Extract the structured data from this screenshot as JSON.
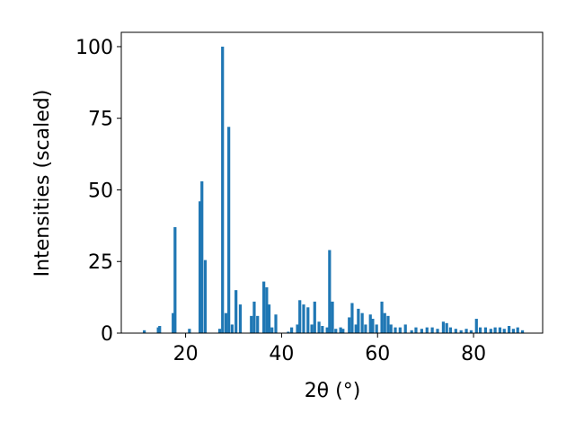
{
  "chart_data": {
    "type": "bar",
    "xlabel": "2θ (°)",
    "ylabel": "Intensities (scaled)",
    "color": "#1f77b4",
    "width": 0.6,
    "x": [
      11.4,
      14.3,
      14.6,
      17.4,
      17.8,
      20.8,
      23.0,
      23.4,
      24.1,
      27.1,
      27.7,
      28.4,
      29.0,
      29.7,
      30.5,
      31.4,
      33.7,
      34.3,
      35.0,
      36.3,
      36.9,
      37.4,
      38.0,
      38.8,
      41.4,
      42.1,
      43.3,
      43.8,
      44.6,
      45.5,
      46.3,
      46.9,
      47.8,
      48.5,
      49.5,
      50.0,
      50.6,
      51.3,
      52.3,
      52.8,
      54.1,
      54.7,
      55.5,
      56.0,
      56.8,
      57.5,
      58.5,
      59.0,
      59.8,
      60.9,
      61.5,
      62.2,
      62.8,
      63.7,
      64.7,
      65.8,
      67.1,
      68.0,
      69.2,
      70.3,
      71.4,
      72.5,
      73.7,
      74.4,
      75.2,
      76.3,
      77.4,
      78.5,
      79.5,
      80.6,
      81.4,
      82.5,
      83.6,
      84.5,
      85.5,
      86.4,
      87.4,
      88.3,
      89.2,
      90.2
    ],
    "values": [
      1,
      2,
      2.5,
      7,
      37,
      1.5,
      46,
      53,
      25.5,
      1.5,
      100,
      7,
      72,
      3,
      15,
      10,
      6,
      11,
      6,
      18,
      16,
      10,
      2,
      6.5,
      0.5,
      2,
      3,
      11.5,
      10,
      9,
      3,
      11,
      4,
      2.5,
      2,
      29,
      11,
      1.5,
      2,
      1.5,
      5.5,
      10.5,
      3,
      8.5,
      7,
      3,
      6.5,
      5,
      3,
      11,
      7,
      6,
      3,
      2,
      2,
      3,
      1,
      2,
      1.5,
      2,
      2,
      1.5,
      4,
      3.5,
      2,
      1.5,
      1,
      1.5,
      1,
      5,
      2,
      2,
      1.5,
      2,
      2,
      1.5,
      2.5,
      1.5,
      2,
      1
    ],
    "xlim": [
      6.6,
      94.4
    ],
    "ylim": [
      0,
      105
    ],
    "xticks": [
      20,
      40,
      60,
      80
    ],
    "yticks": [
      0,
      25,
      50,
      75,
      100
    ]
  }
}
